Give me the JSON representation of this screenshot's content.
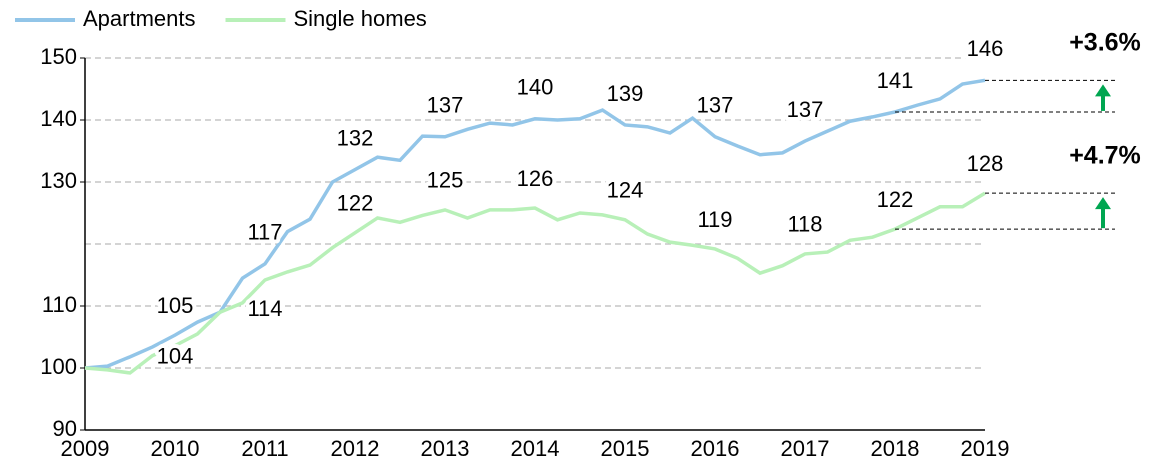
{
  "chart_data": {
    "type": "line",
    "x": [
      2009,
      2009.25,
      2009.5,
      2009.75,
      2010,
      2010.25,
      2010.5,
      2010.75,
      2011,
      2011.25,
      2011.5,
      2011.75,
      2012,
      2012.25,
      2012.5,
      2012.75,
      2013,
      2013.25,
      2013.5,
      2013.75,
      2014,
      2014.25,
      2014.5,
      2014.75,
      2015,
      2015.25,
      2015.5,
      2015.75,
      2016,
      2016.25,
      2016.5,
      2016.75,
      2017,
      2017.25,
      2017.5,
      2017.75,
      2018,
      2018.25,
      2018.5,
      2018.75,
      2019
    ],
    "series": [
      {
        "name": "Apartments",
        "color": "#92c5e8",
        "values": [
          100,
          100.3,
          101.8,
          103.4,
          105.3,
          107.4,
          109,
          114.5,
          116.8,
          122,
          124,
          130,
          132,
          134,
          133.5,
          137.4,
          137.3,
          138.5,
          139.5,
          139.2,
          140.2,
          140,
          140.2,
          141.6,
          139.2,
          138.9,
          137.9,
          140.3,
          137.3,
          135.8,
          134.4,
          134.7,
          136.6,
          138.2,
          139.8,
          140.5,
          141.3,
          142.4,
          143.4,
          145.8,
          146.4
        ],
        "value_labels": [
          null,
          null,
          null,
          null,
          "105",
          null,
          null,
          null,
          "117",
          null,
          null,
          null,
          "132",
          null,
          null,
          null,
          "137",
          null,
          null,
          null,
          "140",
          null,
          null,
          null,
          "139",
          null,
          null,
          null,
          "137",
          null,
          null,
          null,
          "137",
          null,
          null,
          null,
          "141",
          null,
          null,
          null,
          "146"
        ]
      },
      {
        "name": "Single homes",
        "color": "#b8f0b8",
        "values": [
          100,
          99.7,
          99.2,
          102,
          103.6,
          105.5,
          109,
          110.5,
          114.2,
          115.5,
          116.6,
          119.4,
          121.8,
          124.2,
          123.5,
          124.6,
          125.5,
          124.2,
          125.5,
          125.5,
          125.8,
          123.9,
          125,
          124.7,
          123.9,
          121.6,
          120.3,
          119.8,
          119.2,
          117.7,
          115.3,
          116.5,
          118.4,
          118.7,
          120.6,
          121.1,
          122.4,
          124.2,
          126,
          126,
          128.2
        ],
        "value_labels": [
          null,
          null,
          null,
          null,
          "104",
          null,
          null,
          null,
          "114",
          null,
          null,
          null,
          "122",
          null,
          null,
          null,
          "125",
          null,
          null,
          null,
          "126",
          null,
          null,
          null,
          "124",
          null,
          null,
          null,
          "119",
          null,
          null,
          null,
          "118",
          null,
          null,
          null,
          "122",
          null,
          null,
          null,
          "128"
        ]
      }
    ],
    "xlim": [
      2009,
      2019
    ],
    "xticks": [
      2009,
      2010,
      2011,
      2012,
      2013,
      2014,
      2015,
      2016,
      2017,
      2018,
      2019
    ],
    "ylim": [
      90,
      150
    ],
    "yticks": [
      90,
      100,
      110,
      130,
      140,
      150
    ],
    "ygrid": [
      100,
      110,
      120,
      130,
      140,
      150
    ],
    "grid": true,
    "annotations": [
      "+3.6%",
      "+4.7%"
    ],
    "annotation_color": "#00a651",
    "legend": "top-left"
  }
}
